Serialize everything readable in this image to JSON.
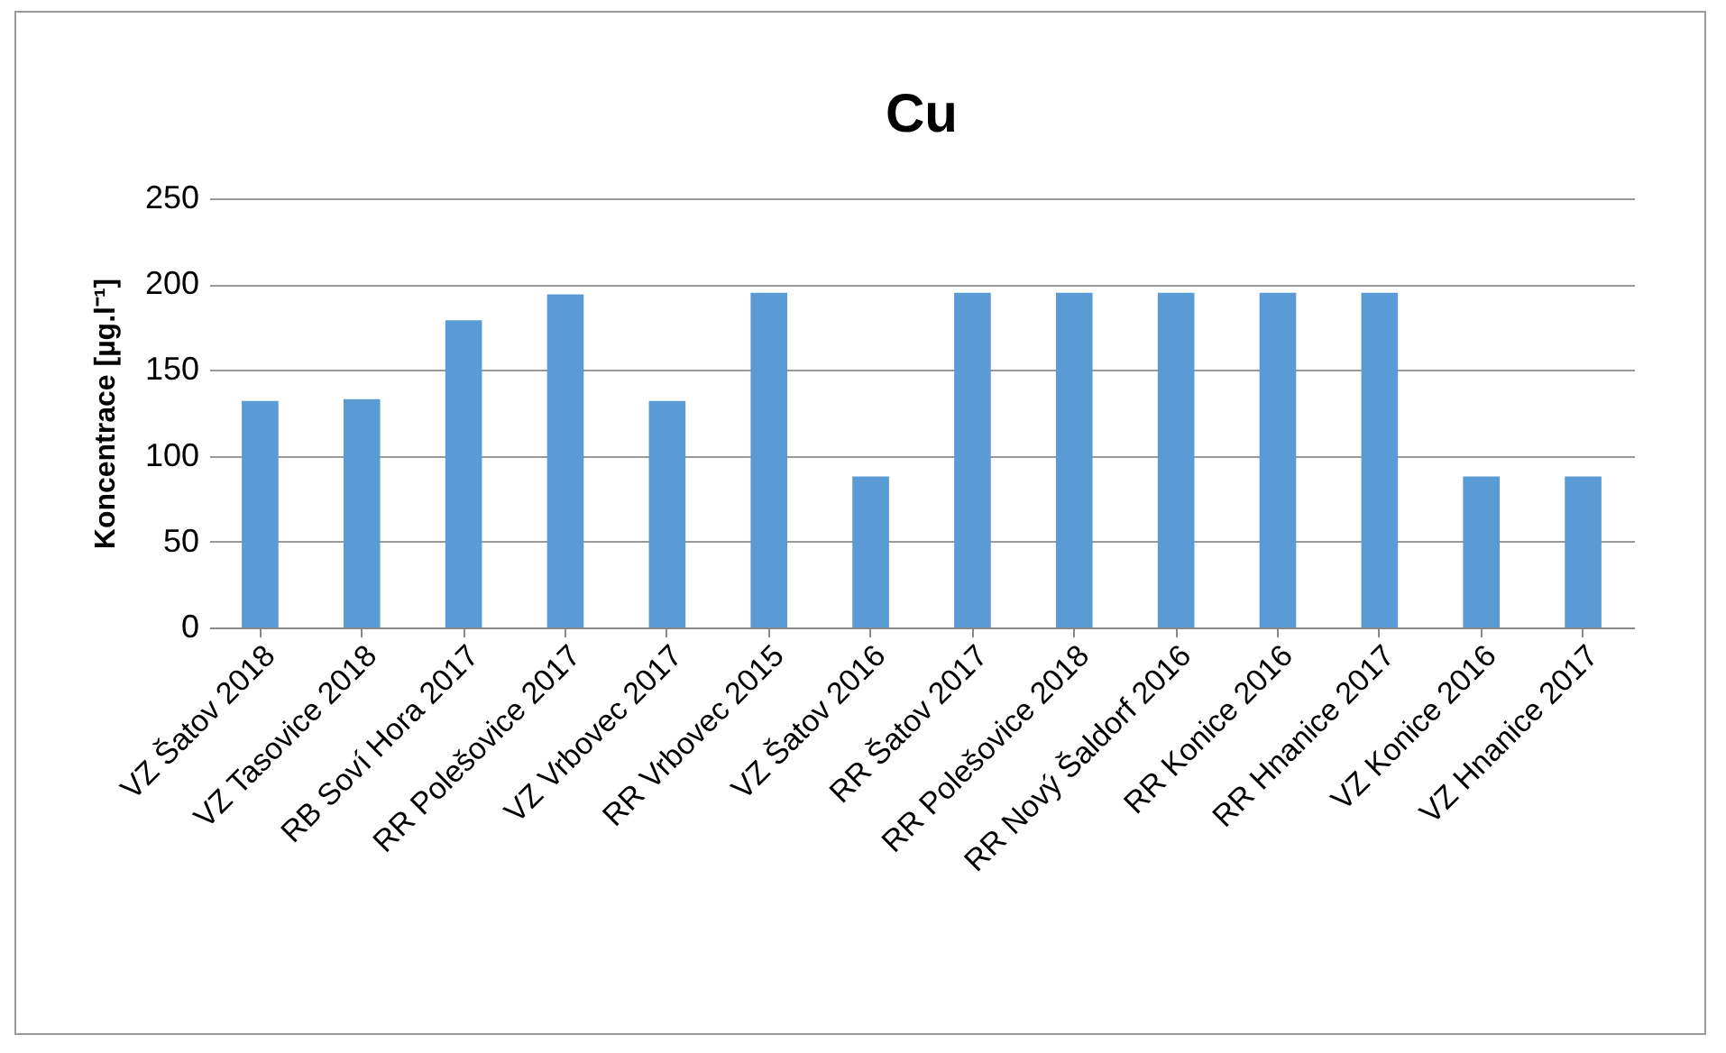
{
  "chart_data": {
    "type": "bar",
    "title": "Cu",
    "ylabel": "Koncentrace [µg.l⁻¹]",
    "categories": [
      "VZ Šatov 2018",
      "VZ Tasovice 2018",
      "RB Soví Hora 2017",
      "RR Polešovice 2017",
      "VZ Vrbovec 2017",
      "RR Vrbovec 2015",
      "VZ Šatov 2016",
      "RR Šatov 2017",
      "RR Polešovice 2018",
      "RR Nový Šaldorf 2016",
      "RR Konice 2016",
      "RR Hnanice 2017",
      "VZ Konice 2016",
      "VZ Hnanice 2017"
    ],
    "values": [
      132,
      133,
      179,
      194,
      132,
      195,
      88,
      195,
      195,
      195,
      195,
      195,
      88,
      88
    ],
    "color": "#5b9bd5",
    "ylim": [
      0,
      250
    ],
    "yticks": [
      0,
      50,
      100,
      150,
      200,
      250
    ],
    "grid": "y"
  }
}
